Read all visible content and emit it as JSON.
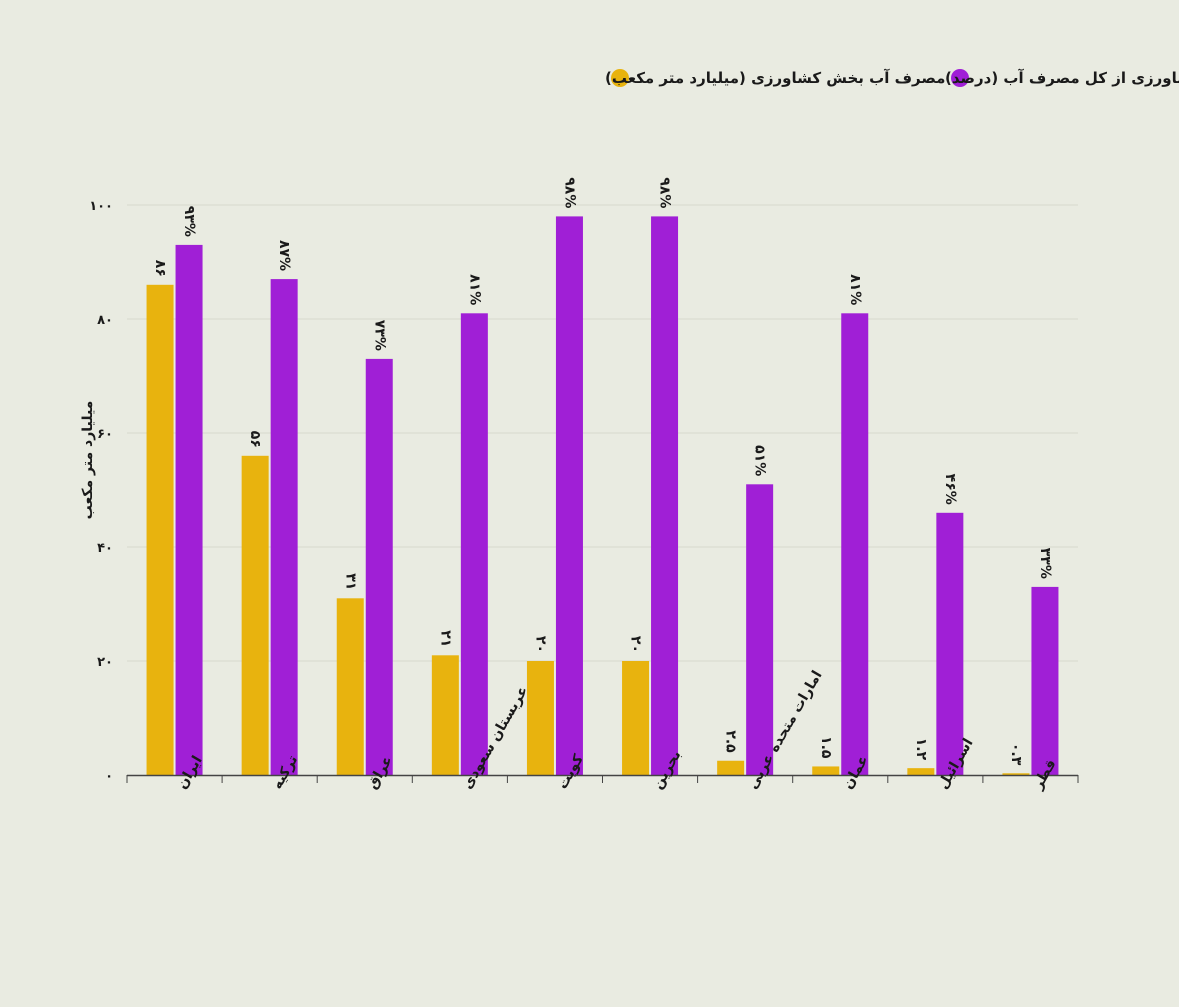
{
  "chart_data": {
    "type": "bar",
    "categories": [
      "ایران",
      "ترکیه",
      "عراق",
      "عربستان سعودی",
      "کویت",
      "بحرین",
      "امارات متحده عربی",
      "عمان",
      "اسرائیل",
      "قطر"
    ],
    "series": [
      {
        "name": "مصرف آب بخش کشاورزی (میلیارد متر مکعب)",
        "color": "#e8b30e",
        "values": [
          86,
          56,
          31,
          21,
          20,
          20,
          2.5,
          1.5,
          1.2,
          0.3
        ],
        "labels": [
          "۸۶",
          "۵۶",
          "۳۱",
          "۲۱",
          "۲۰",
          "۲۰",
          "۲.۵",
          "۱.۵",
          "۱.۲",
          "۰.۳"
        ]
      },
      {
        "name": "سهم کشاورزی از کل مصرف آب (درصد)",
        "color": "#a01fd6",
        "values": [
          93,
          87,
          73,
          81,
          98,
          98,
          51,
          81,
          46,
          33
        ],
        "labels": [
          "۹۳%",
          "۸۷%",
          "۷۳%",
          "۸۱%",
          "۹۸%",
          "۹۸%",
          "۵۱%",
          "۸۱%",
          "۴۶%",
          "۳۳%"
        ]
      }
    ],
    "ylabel": "میلیارد متر مکعب",
    "ylim": [
      0,
      100
    ],
    "yticks": [
      0,
      20,
      40,
      60,
      80,
      100
    ],
    "ytick_labels": [
      "۰",
      "۲۰",
      "۴۰",
      "۶۰",
      "۸۰",
      "۱۰۰"
    ],
    "grid": true,
    "legend_position": "top"
  }
}
